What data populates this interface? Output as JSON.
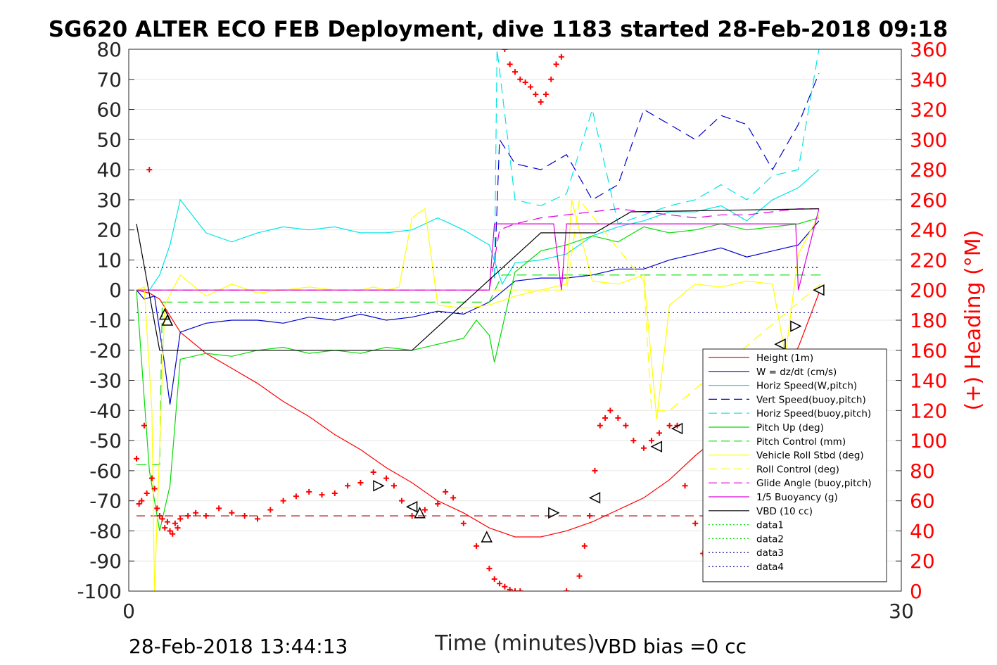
{
  "chart_data": {
    "type": "line",
    "title": "SG620 ALTER ECO FEB Deployment, dive 1183 started 28-Feb-2018 09:18",
    "xlabel": "Time (minutes)",
    "ylabel_right": "(+) Heading (°M)",
    "xlim": [
      0,
      30
    ],
    "ylim": [
      -100,
      80
    ],
    "ylim_right": [
      0,
      360
    ],
    "x_ticks": [
      "0",
      "30"
    ],
    "y_ticks": [
      "80",
      "70",
      "60",
      "50",
      "40",
      "30",
      "20",
      "10",
      "0",
      "-10",
      "-20",
      "-30",
      "-40",
      "-50",
      "-60",
      "-70",
      "-80",
      "-90",
      "-100"
    ],
    "y_ticks_right": [
      "360",
      "340",
      "320",
      "300",
      "280",
      "260",
      "240",
      "220",
      "200",
      "180",
      "160",
      "140",
      "120",
      "100",
      "80",
      "60",
      "40",
      "20",
      "0"
    ],
    "grid": true,
    "legend_position": "lower-right",
    "footer_left": "28-Feb-2018 13:44:13",
    "footer_right": "VBD bias =0 cc",
    "series": [
      {
        "name": "Height (1m)",
        "color": "#ff0000",
        "style": "solid",
        "x": [
          0.3,
          0.8,
          1.2,
          2,
          3,
          4,
          5,
          6,
          7,
          8,
          9,
          10,
          11,
          12,
          13,
          14,
          15,
          16,
          17,
          18,
          19,
          20,
          21,
          22,
          23,
          24,
          25,
          26,
          26.8
        ],
        "y": [
          0,
          -1,
          -3,
          -14,
          -21,
          -26,
          -31,
          -37,
          -42,
          -48,
          -53,
          -59,
          -64,
          -70,
          -74,
          -79,
          -82,
          -82,
          -80,
          -77,
          -73,
          -69,
          -63,
          -55,
          -48,
          -40,
          -31,
          -19,
          -1
        ]
      },
      {
        "name": "W = dz/dt (cm/s)",
        "color": "#0000cc",
        "style": "solid",
        "x": [
          0.3,
          0.6,
          1.0,
          1.4,
          1.6,
          2,
          3,
          4,
          5,
          6,
          7,
          8,
          9,
          10,
          11,
          12,
          13,
          14,
          15,
          16,
          17,
          18,
          19,
          20,
          21,
          22,
          23,
          24,
          25,
          26,
          26.8
        ],
        "y": [
          0,
          -3,
          -2,
          -25,
          -38,
          -14,
          -11,
          -10,
          -10,
          -11,
          -9,
          -10,
          -8,
          -10,
          -9,
          -7,
          -8,
          -4,
          3,
          4,
          4,
          5,
          7,
          7,
          10,
          12,
          14,
          11,
          13,
          15,
          23
        ]
      },
      {
        "name": "Horiz Speed(W,pitch)",
        "color": "#00e5e5",
        "style": "solid",
        "x": [
          0.3,
          0.8,
          1.2,
          1.6,
          2,
          3,
          4,
          5,
          6,
          7,
          8,
          9,
          10,
          11,
          12,
          13,
          14,
          14.5,
          15,
          16,
          17,
          18,
          19,
          20,
          21,
          22,
          23,
          24,
          25,
          26,
          26.8
        ],
        "y": [
          0,
          0,
          5,
          15,
          30,
          19,
          16,
          19,
          21,
          20,
          21,
          19,
          19,
          20,
          24,
          20,
          15,
          2,
          9,
          10,
          12,
          18,
          21,
          23,
          26,
          26,
          28,
          23,
          30,
          34,
          40
        ]
      },
      {
        "name": "Vert Speed(buoy,pitch)",
        "color": "#0000cc",
        "style": "dashed",
        "x": [
          14.2,
          14.4,
          15,
          16,
          17,
          18,
          19,
          20,
          21,
          22,
          23,
          24,
          25,
          26,
          26.8
        ],
        "y": [
          4,
          50,
          42,
          40,
          45,
          30,
          35,
          60,
          55,
          50,
          58,
          55,
          40,
          55,
          72
        ]
      },
      {
        "name": "Horiz Speed(buoy,pitch)",
        "color": "#00e5e5",
        "style": "dashed",
        "x": [
          14.2,
          14.3,
          15,
          16,
          17,
          18,
          19,
          20,
          21,
          22,
          23,
          24,
          25,
          26,
          26.8
        ],
        "y": [
          4,
          80,
          30,
          28,
          32,
          60,
          22,
          25,
          28,
          30,
          35,
          30,
          38,
          40,
          80
        ]
      },
      {
        "name": "Pitch Up (deg)",
        "color": "#00dd00",
        "style": "solid",
        "x": [
          0.3,
          0.8,
          1.2,
          1.6,
          2,
          3,
          4,
          5,
          6,
          7,
          8,
          9,
          10,
          11,
          12,
          13,
          13.5,
          14,
          14.2,
          15,
          16,
          17,
          18,
          19,
          20,
          21,
          22,
          23,
          24,
          25,
          26,
          26.8
        ],
        "y": [
          0,
          -60,
          -80,
          -65,
          -23,
          -21,
          -22,
          -20,
          -19,
          -21,
          -20,
          -21,
          -19,
          -20,
          -18,
          -16,
          -10,
          -15,
          -24,
          6,
          13,
          15,
          18,
          16,
          21,
          19,
          20,
          22,
          20,
          21,
          22,
          24
        ]
      },
      {
        "name": "Pitch Control (mm)",
        "color": "#00dd00",
        "style": "dashed",
        "x": [
          0.3,
          1.2,
          1.3,
          2,
          10,
          13,
          14,
          14.5,
          27
        ],
        "y": [
          -58,
          -58,
          -4,
          -4,
          -4,
          -4,
          -4,
          5,
          5
        ]
      },
      {
        "name": "Vehicle Roll Stbd (deg)",
        "color": "#ffff00",
        "style": "solid",
        "x": [
          0.3,
          0.6,
          0.9,
          1.0,
          1.4,
          2,
          3,
          4,
          5,
          6,
          7,
          8,
          9,
          9.5,
          10,
          10.5,
          11,
          11.5,
          12,
          13,
          14,
          15,
          16,
          17,
          17.2,
          18,
          19,
          20,
          20.5,
          21,
          22,
          23,
          24,
          25,
          25.5,
          26,
          26.8
        ],
        "y": [
          0,
          1,
          -40,
          -100,
          -5,
          5,
          -2,
          2,
          -1,
          0,
          1,
          0,
          0,
          1,
          0,
          1,
          24,
          27,
          -5,
          -6,
          -5,
          -2,
          0,
          2,
          30,
          3,
          2,
          5,
          -43,
          -5,
          2,
          1,
          3,
          2,
          -22,
          12,
          25
        ]
      },
      {
        "name": "Roll Control (deg)",
        "color": "#ffff00",
        "style": "dashed",
        "x": [
          0.3,
          10,
          17,
          17.5,
          20,
          20.3,
          21,
          27
        ],
        "y": [
          0,
          0,
          0,
          30,
          3,
          -40,
          -40,
          3
        ]
      },
      {
        "name": "Glide Angle (buoy,pitch)",
        "color": "#dd00dd",
        "style": "dashed",
        "x": [
          0.3,
          14,
          14.4,
          15,
          16,
          17,
          18,
          19,
          20,
          21,
          22,
          23,
          24,
          25,
          26,
          26.8
        ],
        "y": [
          0,
          0,
          20,
          22,
          24,
          25,
          26,
          27,
          26,
          25,
          24,
          25,
          25,
          26,
          27,
          27
        ]
      },
      {
        "name": "1/5 Buoyancy (g)",
        "color": "#dd00dd",
        "style": "solid",
        "x": [
          0.3,
          14,
          14.2,
          16.5,
          16.8,
          17,
          25.9,
          26.0,
          26.8
        ],
        "y": [
          0,
          0,
          22,
          22,
          0,
          22,
          22,
          0,
          27
        ]
      },
      {
        "name": "VBD (10 cc)",
        "color": "#000000",
        "style": "solid",
        "x": [
          0.3,
          1.2,
          11,
          16,
          18.1,
          19.5,
          26.8
        ],
        "y": [
          22,
          -20,
          -20,
          19,
          19,
          26,
          27
        ]
      },
      {
        "name": "data1",
        "color": "#00dd00",
        "style": "dotted",
        "x": [],
        "y": []
      },
      {
        "name": "data2",
        "color": "#00dd00",
        "style": "dotted",
        "x": [],
        "y": []
      },
      {
        "name": "data3",
        "color": "#000080",
        "style": "dotted",
        "x": [
          0.3,
          26.8
        ],
        "y": [
          7.5,
          7.5
        ]
      },
      {
        "name": "data4",
        "color": "#000080",
        "style": "dotted",
        "x": [
          0.3,
          26.8
        ],
        "y": [
          -7.5,
          -7.5
        ]
      }
    ],
    "extra_lines": [
      {
        "kind": "target heading",
        "color": "#aa0000",
        "style": "dashed",
        "y_right": 50
      }
    ],
    "heading_points": {
      "color": "#ff0000",
      "x": [
        0.3,
        0.4,
        0.5,
        0.6,
        0.7,
        0.8,
        0.9,
        1.0,
        1.1,
        1.2,
        1.3,
        1.4,
        1.5,
        1.6,
        1.7,
        1.8,
        1.9,
        2.0,
        2.3,
        2.6,
        3,
        3.5,
        4,
        4.5,
        5,
        5.5,
        6,
        6.5,
        7,
        7.5,
        8,
        8.5,
        9,
        9.5,
        10,
        10.3,
        10.6,
        11,
        11.5,
        12,
        12.3,
        12.6,
        13,
        13.5,
        14,
        14.2,
        14.4,
        14.6,
        14.8,
        15,
        15.2,
        14.6,
        14.8,
        15,
        15.2,
        15.4,
        15.6,
        15.8,
        16,
        16.2,
        16.4,
        16.6,
        16.8,
        17.0,
        17.5,
        17.7,
        17.9,
        18.1,
        18.3,
        18.5,
        18.7,
        19,
        19.3,
        19.6,
        20,
        20.3,
        20.6,
        21,
        21.3,
        21.6,
        22,
        22.3
      ],
      "y": [
        88,
        58,
        60,
        110,
        65,
        280,
        75,
        68,
        55,
        50,
        48,
        42,
        46,
        40,
        38,
        45,
        42,
        48,
        50,
        52,
        50,
        55,
        52,
        50,
        48,
        54,
        60,
        63,
        66,
        64,
        65,
        70,
        72,
        79,
        75,
        70,
        60,
        50,
        54,
        58,
        66,
        62,
        45,
        30,
        15,
        8,
        5,
        3,
        1,
        0,
        0,
        360,
        350,
        345,
        340,
        338,
        335,
        330,
        325,
        330,
        340,
        350,
        355,
        0,
        10,
        30,
        50,
        80,
        110,
        115,
        120,
        115,
        110,
        100,
        95,
        100,
        105,
        110,
        110,
        70,
        45,
        25
      ]
    },
    "markers": [
      {
        "shape": "up-triangle",
        "x": 1.4,
        "y": -8
      },
      {
        "shape": "up-triangle",
        "x": 1.5,
        "y": -10
      },
      {
        "shape": "right-triangle",
        "x": 9.7,
        "y": -65
      },
      {
        "shape": "left-triangle",
        "x": 11.0,
        "y": -72
      },
      {
        "shape": "up-triangle",
        "x": 11.3,
        "y": -74
      },
      {
        "shape": "up-triangle",
        "x": 13.9,
        "y": -82
      },
      {
        "shape": "right-triangle",
        "x": 16.5,
        "y": -74
      },
      {
        "shape": "left-triangle",
        "x": 18.1,
        "y": -69
      },
      {
        "shape": "left-triangle",
        "x": 20.5,
        "y": -52
      },
      {
        "shape": "left-triangle",
        "x": 21.3,
        "y": -46
      },
      {
        "shape": "left-triangle",
        "x": 25.3,
        "y": -18
      },
      {
        "shape": "right-triangle",
        "x": 25.9,
        "y": -12
      },
      {
        "shape": "left-triangle",
        "x": 26.8,
        "y": 0
      }
    ]
  }
}
